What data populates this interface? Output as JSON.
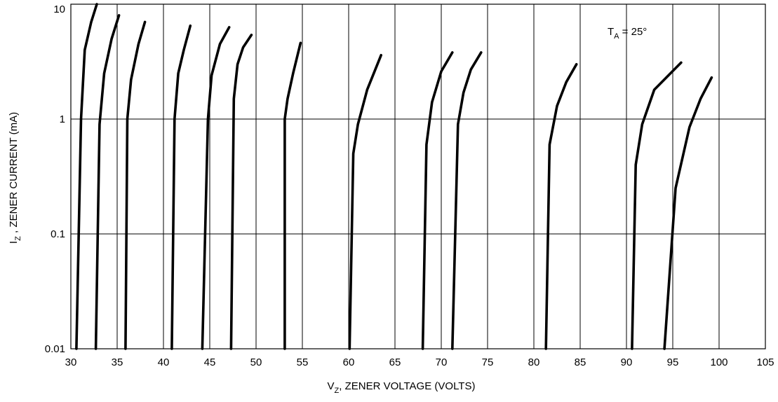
{
  "chart_data": {
    "type": "line",
    "title": "",
    "xlabel": "V_Z, ZENER VOLTAGE (VOLTS)",
    "ylabel": "I_Z , ZENER CURRENT (mA)",
    "xlabel_parts": {
      "main": "V",
      "sub": "Z",
      "rest": ", ZENER VOLTAGE (VOLTS)"
    },
    "ylabel_parts": {
      "main": "I",
      "sub": "Z",
      "rest": " , ZENER CURRENT (mA)"
    },
    "annotation": {
      "main": "T",
      "sub": "A",
      "rest": " = 25°"
    },
    "xlim": [
      30,
      105
    ],
    "ylim": [
      0.01,
      10
    ],
    "yscale": "log",
    "grid": true,
    "x_ticks": [
      30,
      35,
      40,
      45,
      50,
      55,
      60,
      65,
      70,
      75,
      80,
      85,
      90,
      95,
      100,
      105
    ],
    "x_tick_labels": [
      "30",
      "35",
      "40",
      "45",
      "50",
      "55",
      "60",
      "65",
      "70",
      "75",
      "80",
      "85",
      "90",
      "95",
      "100",
      "105"
    ],
    "y_ticks": [
      0.01,
      0.1,
      1,
      10
    ],
    "y_tick_labels": [
      "0.01",
      "0.1",
      "1",
      "10"
    ],
    "series": [
      {
        "points": [
          [
            30.6,
            0.01
          ],
          [
            31.1,
            1
          ],
          [
            31.5,
            4
          ],
          [
            32.2,
            7
          ],
          [
            32.8,
            10
          ]
        ]
      },
      {
        "points": [
          [
            32.7,
            0.01
          ],
          [
            33.1,
            0.9
          ],
          [
            33.6,
            2.5
          ],
          [
            34.4,
            5
          ],
          [
            35.2,
            8
          ]
        ]
      },
      {
        "points": [
          [
            35.9,
            0.01
          ],
          [
            36.1,
            1
          ],
          [
            36.5,
            2.2
          ],
          [
            37.3,
            4.5
          ],
          [
            38.0,
            7
          ]
        ]
      },
      {
        "points": [
          [
            40.9,
            0.01
          ],
          [
            41.2,
            1
          ],
          [
            41.6,
            2.5
          ],
          [
            42.2,
            4
          ],
          [
            42.9,
            6.5
          ]
        ]
      },
      {
        "points": [
          [
            44.2,
            0.01
          ],
          [
            44.8,
            1
          ],
          [
            45.2,
            2.4
          ],
          [
            46.1,
            4.5
          ],
          [
            47.1,
            6.3
          ]
        ]
      },
      {
        "points": [
          [
            47.3,
            0.01
          ],
          [
            47.6,
            1.5
          ],
          [
            48.0,
            3
          ],
          [
            48.6,
            4.2
          ],
          [
            49.5,
            5.4
          ]
        ]
      },
      {
        "points": [
          [
            53.1,
            0.01
          ],
          [
            53.1,
            1
          ],
          [
            53.4,
            1.5
          ],
          [
            54.0,
            2.5
          ],
          [
            54.8,
            4.6
          ]
        ]
      },
      {
        "points": [
          [
            60.1,
            0.01
          ],
          [
            60.5,
            0.5
          ],
          [
            61.0,
            0.9
          ],
          [
            62.0,
            1.8
          ],
          [
            63.5,
            3.6
          ]
        ]
      },
      {
        "points": [
          [
            68.0,
            0.01
          ],
          [
            68.4,
            0.6
          ],
          [
            69.0,
            1.4
          ],
          [
            70.0,
            2.6
          ],
          [
            71.2,
            3.8
          ]
        ]
      },
      {
        "points": [
          [
            71.2,
            0.01
          ],
          [
            71.8,
            0.9
          ],
          [
            72.4,
            1.7
          ],
          [
            73.2,
            2.7
          ],
          [
            74.3,
            3.8
          ]
        ]
      },
      {
        "points": [
          [
            81.3,
            0.01
          ],
          [
            81.7,
            0.6
          ],
          [
            82.5,
            1.3
          ],
          [
            83.5,
            2.1
          ],
          [
            84.6,
            3.0
          ]
        ]
      },
      {
        "points": [
          [
            90.6,
            0.01
          ],
          [
            91.0,
            0.4
          ],
          [
            91.7,
            0.9
          ],
          [
            93.0,
            1.8
          ],
          [
            95.9,
            3.1
          ]
        ]
      },
      {
        "points": [
          [
            94.1,
            0.01
          ],
          [
            95.3,
            0.25
          ],
          [
            96.8,
            0.85
          ],
          [
            98.0,
            1.5
          ],
          [
            99.2,
            2.3
          ]
        ]
      }
    ]
  }
}
